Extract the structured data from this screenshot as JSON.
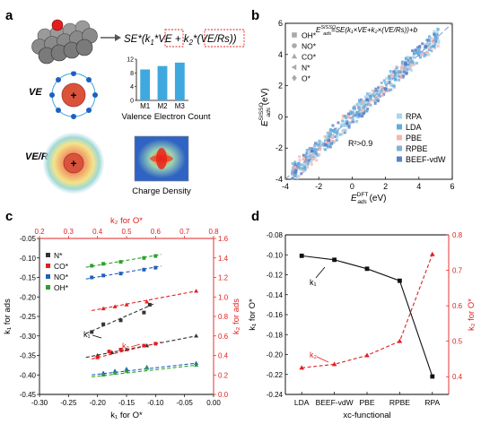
{
  "panels": {
    "a": {
      "letter": "a",
      "formula": {
        "lhs": "SE*(k",
        "sub1": "1",
        "mul1": "*",
        "ve": "VE",
        "plus": " + k",
        "sub2": "2",
        "mul2": "*",
        "vers": "(VE/Rs)",
        "rhs": ")"
      },
      "ve_label": "VE",
      "vers_label": "VE/Rs",
      "electron_label": "e",
      "nucleus_label": "+",
      "valence_chart_caption": "Valence Electron Count",
      "charge_density_caption": "Charge Density",
      "colors": {
        "bar": "#3fa9df",
        "nucleus": "#d9533b",
        "highlight": "#e02020",
        "atom": "#8a8a8a"
      }
    },
    "b": {
      "letter": "b"
    },
    "c": {
      "letter": "c"
    },
    "d": {
      "letter": "d"
    }
  },
  "chart_data": [
    {
      "id": "valence-electron-count",
      "type": "bar",
      "categories": [
        "M1",
        "M2",
        "M3"
      ],
      "values": [
        9,
        10,
        11
      ],
      "ylim": [
        0,
        12
      ],
      "yticks": [
        0,
        4,
        8,
        12
      ],
      "xlabel": "Valence Electron Count",
      "ylabel": "",
      "color": "#3fa9df"
    },
    {
      "id": "sisso-parity",
      "type": "scatter",
      "xlabel_main": "E",
      "xlabel_sub": "ads",
      "xlabel_sup": "DFT",
      "xlabel_unit": " (eV)",
      "ylabel_main": "E",
      "ylabel_sub": "ads",
      "ylabel_sup": "SISSO",
      "ylabel_unit": " (eV)",
      "xlim": [
        -4,
        6
      ],
      "ylim": [
        -4,
        6
      ],
      "xticks": [
        -4,
        -2,
        0,
        2,
        4,
        6
      ],
      "yticks": [
        -4,
        -2,
        0,
        2,
        4,
        6
      ],
      "equation": "E",
      "equation_sub": "ads",
      "equation_sup": "SISSO",
      "equation_rhs": "=SE(k₁×VE+k₂×(VE/Rs))+b",
      "r2": "R²>0.9",
      "adsorbates": [
        "OH*",
        "NO*",
        "CO*",
        "N*",
        "O*"
      ],
      "series": [
        {
          "name": "RPA",
          "color": "#a8d8ea",
          "points": [
            [
              -1.8,
              -1.7
            ],
            [
              -0.6,
              -0.5
            ],
            [
              0.8,
              0.9
            ],
            [
              2.1,
              2.2
            ],
            [
              3.4,
              3.2
            ],
            [
              4.6,
              4.7
            ],
            [
              -2.6,
              -2.4
            ],
            [
              1.4,
              1.5
            ]
          ]
        },
        {
          "name": "LDA",
          "color": "#5dade2",
          "points": [
            [
              -2.2,
              -2.3
            ],
            [
              -1.1,
              -0.9
            ],
            [
              0.2,
              0.1
            ],
            [
              1.1,
              1.3
            ],
            [
              2.6,
              2.4
            ],
            [
              3.9,
              4.1
            ],
            [
              5.0,
              5.1
            ],
            [
              -3.2,
              -3.0
            ]
          ]
        },
        {
          "name": "PBE",
          "color": "#f5b7b1",
          "points": [
            [
              -1.5,
              -1.6
            ],
            [
              -0.2,
              0.0
            ],
            [
              0.6,
              0.4
            ],
            [
              1.8,
              1.9
            ],
            [
              3.0,
              3.1
            ],
            [
              4.2,
              4.0
            ],
            [
              -2.9,
              -2.7
            ],
            [
              2.4,
              2.6
            ]
          ]
        },
        {
          "name": "RPBE",
          "color": "#7fb3d5",
          "points": [
            [
              -2.0,
              -1.8
            ],
            [
              -0.9,
              -1.0
            ],
            [
              0.4,
              0.6
            ],
            [
              1.6,
              1.4
            ],
            [
              2.8,
              2.9
            ],
            [
              4.0,
              4.3
            ],
            [
              -1.3,
              -1.1
            ],
            [
              3.6,
              3.5
            ]
          ]
        },
        {
          "name": "BEEF-vdW",
          "color": "#5b7fc9",
          "points": [
            [
              -2.4,
              -2.2
            ],
            [
              -1.4,
              -1.5
            ],
            [
              -0.3,
              -0.4
            ],
            [
              0.9,
              1.1
            ],
            [
              2.0,
              1.8
            ],
            [
              3.2,
              3.4
            ],
            [
              4.4,
              4.5
            ],
            [
              -3.4,
              -3.5
            ]
          ]
        }
      ]
    },
    {
      "id": "k1-k2-correlation",
      "type": "scatter",
      "xlabel": "k₁ for O*",
      "ylabel": "k₁ for ads",
      "x2label": "k₂ for O*",
      "y2label": "k₂ for ads",
      "xlim": [
        -0.3,
        0.0
      ],
      "ylim": [
        -0.45,
        -0.05
      ],
      "xticks": [
        -0.3,
        -0.25,
        -0.2,
        -0.15,
        -0.1,
        -0.05,
        0.0
      ],
      "yticks": [
        -0.45,
        -0.4,
        -0.35,
        -0.3,
        -0.25,
        -0.2,
        -0.15,
        -0.1,
        -0.05
      ],
      "x2lim": [
        0.2,
        0.8
      ],
      "y2lim": [
        0.0,
        1.6
      ],
      "x2ticks": [
        0.2,
        0.3,
        0.4,
        0.5,
        0.6,
        0.7,
        0.8
      ],
      "y2ticks": [
        0.0,
        0.2,
        0.4,
        0.6,
        0.8,
        1.0,
        1.2,
        1.4,
        1.6
      ],
      "annotation_k1": "k₁",
      "annotation_k2": "k₂",
      "series": [
        {
          "name": "N*",
          "color": "#333333",
          "k1": [
            [
              -0.21,
              -0.29
            ],
            [
              -0.19,
              -0.27
            ],
            [
              -0.16,
              -0.26
            ],
            [
              -0.12,
              -0.24
            ],
            [
              -0.11,
              -0.22
            ]
          ],
          "k2": [
            [
              0.4,
              0.4
            ],
            [
              0.45,
              0.43
            ],
            [
              0.5,
              0.46
            ],
            [
              0.57,
              0.5
            ],
            [
              0.74,
              0.6
            ]
          ]
        },
        {
          "name": "CO*",
          "color": "#e02020",
          "k1": [
            [
              -0.2,
              -0.355
            ],
            [
              -0.18,
              -0.34
            ],
            [
              -0.16,
              -0.335
            ],
            [
              -0.12,
              -0.325
            ],
            [
              -0.1,
              -0.32
            ]
          ],
          "k2": [
            [
              0.42,
              0.88
            ],
            [
              0.46,
              0.9
            ],
            [
              0.5,
              0.92
            ],
            [
              0.57,
              0.95
            ],
            [
              0.74,
              1.06
            ]
          ]
        },
        {
          "name": "NO*",
          "color": "#1f5fbf",
          "k1": [
            [
              -0.21,
              -0.15
            ],
            [
              -0.19,
              -0.145
            ],
            [
              -0.16,
              -0.14
            ],
            [
              -0.12,
              -0.13
            ],
            [
              -0.1,
              -0.125
            ]
          ],
          "k2": [
            [
              0.42,
              0.22
            ],
            [
              0.46,
              0.24
            ],
            [
              0.5,
              0.26
            ],
            [
              0.57,
              0.28
            ],
            [
              0.74,
              0.32
            ]
          ]
        },
        {
          "name": "OH*",
          "color": "#2ca02c",
          "k1": [
            [
              -0.21,
              -0.12
            ],
            [
              -0.19,
              -0.115
            ],
            [
              -0.16,
              -0.11
            ],
            [
              -0.12,
              -0.1
            ],
            [
              -0.1,
              -0.095
            ]
          ],
          "k2": [
            [
              0.42,
              0.2
            ],
            [
              0.46,
              0.22
            ],
            [
              0.5,
              0.24
            ],
            [
              0.57,
              0.27
            ],
            [
              0.74,
              0.3
            ]
          ]
        }
      ]
    },
    {
      "id": "k-vs-functional",
      "type": "line",
      "categories": [
        "LDA",
        "BEEF-vdW",
        "PBE",
        "RPBE",
        "RPA"
      ],
      "xlabel": "xc-functional",
      "ylabel": "k₁ for O*",
      "y2label": "k₂ for O*",
      "ylim": [
        -0.24,
        -0.08
      ],
      "yticks": [
        -0.24,
        -0.22,
        -0.2,
        -0.18,
        -0.16,
        -0.14,
        -0.12,
        -0.1,
        -0.08
      ],
      "y2lim": [
        0.35,
        0.8
      ],
      "y2ticks": [
        0.4,
        0.5,
        0.6,
        0.7,
        0.8
      ],
      "annotation_k1": "k₁",
      "annotation_k2": "k₂",
      "series": [
        {
          "name": "k1",
          "axis": "left",
          "color": "#111111",
          "values": [
            -0.101,
            -0.105,
            -0.114,
            -0.126,
            -0.222
          ]
        },
        {
          "name": "k2",
          "axis": "right",
          "color": "#e02020",
          "values": [
            0.425,
            0.435,
            0.46,
            0.5,
            0.745
          ]
        }
      ]
    }
  ]
}
